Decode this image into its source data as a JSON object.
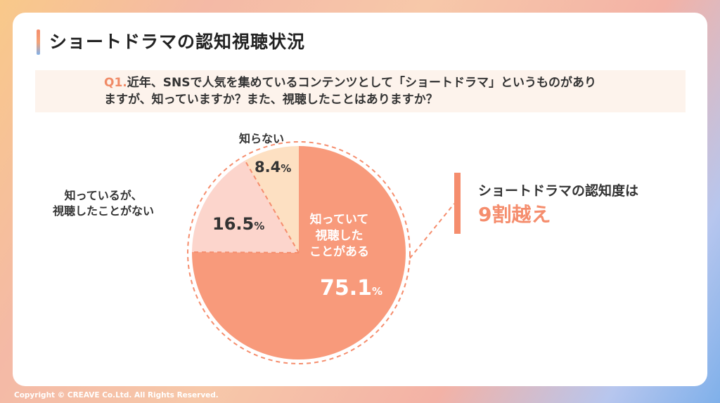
{
  "title": "ショートドラマの認知視聴状況",
  "question": {
    "label": "Q1.",
    "line1": "近年、SNSで人気を集めているコンテンツとして「ショートドラマ」というものがあり",
    "line2": "ますが、知っていますか？また、視聴したことはありますか？"
  },
  "chart_data": {
    "type": "pie",
    "slices": [
      {
        "label_lines": [
          "知っていて",
          "視聴した",
          "ことがある"
        ],
        "value": 75.1,
        "color": "#f89a7b"
      },
      {
        "label_lines": [
          "知っているが、",
          "視聴したことがない"
        ],
        "value": 16.5,
        "color": "#fcd5cc"
      },
      {
        "label_lines": [
          "知らない"
        ],
        "value": 8.4,
        "color": "#fde0c2"
      }
    ],
    "unit": "%"
  },
  "callout": {
    "line1": "ショートドラマの認知度は",
    "line2": "9割越え"
  },
  "colors": {
    "accent": "#f58d6d",
    "dashed": "#f58d6d"
  },
  "copyright": "Copyright © CREAVE Co.Ltd. All Rights Reserved."
}
